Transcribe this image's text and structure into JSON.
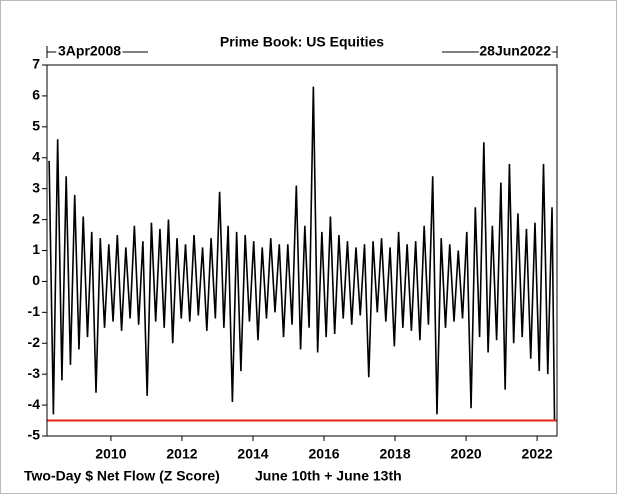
{
  "chart_data": {
    "type": "line",
    "title": "Prime Book: US Equities",
    "start_date_label": "3Apr2008",
    "end_date_label": "28Jun2022",
    "footer": "Two-Day $ Net Flow (Z Score)",
    "footer_highlight": "June 10th + June 13th",
    "footer_highlight_color": "#e8231c",
    "color": "#000000",
    "x": [
      2008.26,
      2008.38,
      2008.5,
      2008.62,
      2008.74,
      2008.86,
      2008.98,
      2009.1,
      2009.22,
      2009.34,
      2009.46,
      2009.58,
      2009.7,
      2009.82,
      2009.94,
      2010.06,
      2010.18,
      2010.3,
      2010.42,
      2010.54,
      2010.66,
      2010.78,
      2010.9,
      2011.02,
      2011.14,
      2011.26,
      2011.38,
      2011.5,
      2011.62,
      2011.74,
      2011.86,
      2011.98,
      2012.1,
      2012.22,
      2012.34,
      2012.46,
      2012.58,
      2012.7,
      2012.82,
      2012.94,
      2013.06,
      2013.18,
      2013.3,
      2013.42,
      2013.54,
      2013.66,
      2013.78,
      2013.9,
      2014.02,
      2014.14,
      2014.26,
      2014.38,
      2014.5,
      2014.62,
      2014.74,
      2014.86,
      2014.98,
      2015.1,
      2015.22,
      2015.34,
      2015.46,
      2015.58,
      2015.7,
      2015.82,
      2015.94,
      2016.06,
      2016.18,
      2016.3,
      2016.42,
      2016.54,
      2016.66,
      2016.78,
      2016.9,
      2017.02,
      2017.14,
      2017.26,
      2017.38,
      2017.5,
      2017.62,
      2017.74,
      2017.86,
      2017.98,
      2018.1,
      2018.22,
      2018.34,
      2018.46,
      2018.58,
      2018.7,
      2018.82,
      2018.94,
      2019.06,
      2019.18,
      2019.3,
      2019.42,
      2019.54,
      2019.66,
      2019.78,
      2019.9,
      2020.02,
      2020.14,
      2020.26,
      2020.38,
      2020.5,
      2020.62,
      2020.74,
      2020.86,
      2020.98,
      2021.1,
      2021.22,
      2021.34,
      2021.46,
      2021.58,
      2021.7,
      2021.82,
      2021.94,
      2022.06,
      2022.18,
      2022.3,
      2022.42,
      2022.49
    ],
    "values": [
      3.9,
      -4.3,
      4.6,
      -3.2,
      3.4,
      -2.7,
      2.8,
      -2.2,
      2.1,
      -1.8,
      1.6,
      -3.6,
      1.4,
      -1.5,
      1.2,
      -1.3,
      1.5,
      -1.6,
      1.1,
      -1.2,
      1.8,
      -1.4,
      1.3,
      -3.7,
      1.9,
      -1.3,
      1.7,
      -1.5,
      2.0,
      -2.0,
      1.4,
      -1.2,
      1.2,
      -1.3,
      1.5,
      -1.1,
      1.1,
      -1.6,
      1.4,
      -1.2,
      2.9,
      -1.5,
      1.8,
      -3.9,
      1.6,
      -2.9,
      1.5,
      -1.3,
      1.3,
      -1.9,
      1.1,
      -1.2,
      1.4,
      -1.0,
      1.2,
      -1.8,
      1.2,
      -1.4,
      3.1,
      -2.2,
      1.8,
      -1.5,
      6.3,
      -2.3,
      1.6,
      -1.8,
      2.1,
      -1.7,
      1.5,
      -1.2,
      1.3,
      -1.4,
      1.1,
      -1.1,
      1.2,
      -3.1,
      1.3,
      -1.0,
      1.4,
      -1.3,
      1.1,
      -2.1,
      1.6,
      -1.5,
      1.2,
      -1.6,
      1.3,
      -1.9,
      1.8,
      -1.4,
      3.4,
      -4.3,
      1.4,
      -1.5,
      1.2,
      -1.3,
      1.0,
      -1.2,
      1.6,
      -4.1,
      2.4,
      -1.8,
      4.5,
      -2.3,
      1.8,
      -1.9,
      3.2,
      -3.5,
      3.8,
      -2.0,
      2.2,
      -1.8,
      1.7,
      -2.5,
      1.9,
      -2.9,
      3.8,
      -3.0,
      2.4,
      -4.5
    ],
    "reference_line": {
      "value": -4.5,
      "color": "#e8231c"
    },
    "xlim": [
      2008.2,
      2022.56
    ],
    "xticks": [
      2010,
      2012,
      2014,
      2016,
      2018,
      2020,
      2022
    ],
    "ylim": [
      -5,
      7
    ],
    "yticks": [
      7,
      6,
      5,
      4,
      3,
      2,
      1,
      0,
      -1,
      -2,
      -3,
      -4,
      -5
    ]
  }
}
